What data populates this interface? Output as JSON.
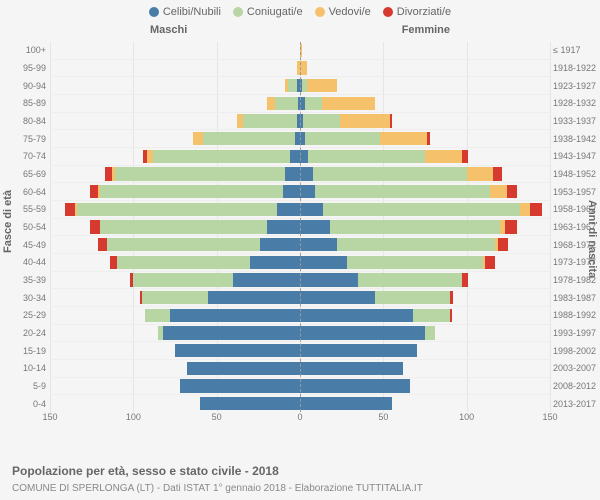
{
  "legend": [
    {
      "label": "Celibi/Nubili",
      "color": "#4a7ca8"
    },
    {
      "label": "Coniugati/e",
      "color": "#b7d6a3"
    },
    {
      "label": "Vedovi/e",
      "color": "#f5c26b"
    },
    {
      "label": "Divorziati/e",
      "color": "#d63a2f"
    }
  ],
  "headers": {
    "male": "Maschi",
    "female": "Femmine"
  },
  "axisTitles": {
    "left": "Fasce di età",
    "right": "Anni di nascita"
  },
  "xAxis": {
    "max": 150,
    "ticks": [
      -150,
      -100,
      -50,
      0,
      50,
      100,
      150
    ],
    "tickLabels": [
      "150",
      "100",
      "50",
      "0",
      "50",
      "100",
      "150"
    ]
  },
  "caption": "Popolazione per età, sesso e stato civile - 2018",
  "subcaption": "COMUNE DI SPERLONGA (LT) - Dati ISTAT 1° gennaio 2018 - Elaborazione TUTTITALIA.IT",
  "rows": [
    {
      "age": "100+",
      "birth": "≤ 1917",
      "m": [
        0,
        0,
        0,
        0
      ],
      "f": [
        0,
        0,
        1,
        0
      ]
    },
    {
      "age": "95-99",
      "birth": "1918-1922",
      "m": [
        0,
        0,
        2,
        0
      ],
      "f": [
        0,
        0,
        4,
        0
      ]
    },
    {
      "age": "90-94",
      "birth": "1923-1927",
      "m": [
        2,
        5,
        2,
        0
      ],
      "f": [
        1,
        3,
        18,
        0
      ]
    },
    {
      "age": "85-89",
      "birth": "1928-1932",
      "m": [
        1,
        14,
        5,
        0
      ],
      "f": [
        3,
        10,
        32,
        0
      ]
    },
    {
      "age": "80-84",
      "birth": "1933-1937",
      "m": [
        2,
        32,
        4,
        0
      ],
      "f": [
        2,
        22,
        30,
        1
      ]
    },
    {
      "age": "75-79",
      "birth": "1938-1942",
      "m": [
        3,
        55,
        6,
        0
      ],
      "f": [
        3,
        45,
        28,
        2
      ]
    },
    {
      "age": "70-74",
      "birth": "1943-1947",
      "m": [
        6,
        82,
        4,
        2
      ],
      "f": [
        5,
        70,
        22,
        4
      ]
    },
    {
      "age": "65-69",
      "birth": "1948-1952",
      "m": [
        9,
        102,
        2,
        4
      ],
      "f": [
        8,
        92,
        16,
        5
      ]
    },
    {
      "age": "60-64",
      "birth": "1953-1957",
      "m": [
        10,
        110,
        1,
        5
      ],
      "f": [
        9,
        105,
        10,
        6
      ]
    },
    {
      "age": "55-59",
      "birth": "1958-1962",
      "m": [
        14,
        120,
        1,
        6
      ],
      "f": [
        14,
        118,
        6,
        7
      ]
    },
    {
      "age": "50-54",
      "birth": "1963-1967",
      "m": [
        20,
        100,
        0,
        6
      ],
      "f": [
        18,
        102,
        3,
        7
      ]
    },
    {
      "age": "45-49",
      "birth": "1968-1972",
      "m": [
        24,
        92,
        0,
        5
      ],
      "f": [
        22,
        95,
        2,
        6
      ]
    },
    {
      "age": "40-44",
      "birth": "1973-1977",
      "m": [
        30,
        80,
        0,
        4
      ],
      "f": [
        28,
        82,
        1,
        6
      ]
    },
    {
      "age": "35-39",
      "birth": "1978-1982",
      "m": [
        40,
        60,
        0,
        2
      ],
      "f": [
        35,
        62,
        0,
        4
      ]
    },
    {
      "age": "30-34",
      "birth": "1983-1987",
      "m": [
        55,
        40,
        0,
        1
      ],
      "f": [
        45,
        45,
        0,
        2
      ]
    },
    {
      "age": "25-29",
      "birth": "1988-1992",
      "m": [
        78,
        15,
        0,
        0
      ],
      "f": [
        68,
        22,
        0,
        1
      ]
    },
    {
      "age": "20-24",
      "birth": "1993-1997",
      "m": [
        82,
        3,
        0,
        0
      ],
      "f": [
        75,
        6,
        0,
        0
      ]
    },
    {
      "age": "15-19",
      "birth": "1998-2002",
      "m": [
        75,
        0,
        0,
        0
      ],
      "f": [
        70,
        0,
        0,
        0
      ]
    },
    {
      "age": "10-14",
      "birth": "2003-2007",
      "m": [
        68,
        0,
        0,
        0
      ],
      "f": [
        62,
        0,
        0,
        0
      ]
    },
    {
      "age": "5-9",
      "birth": "2008-2012",
      "m": [
        72,
        0,
        0,
        0
      ],
      "f": [
        66,
        0,
        0,
        0
      ]
    },
    {
      "age": "0-4",
      "birth": "2013-2017",
      "m": [
        60,
        0,
        0,
        0
      ],
      "f": [
        55,
        0,
        0,
        0
      ]
    }
  ]
}
